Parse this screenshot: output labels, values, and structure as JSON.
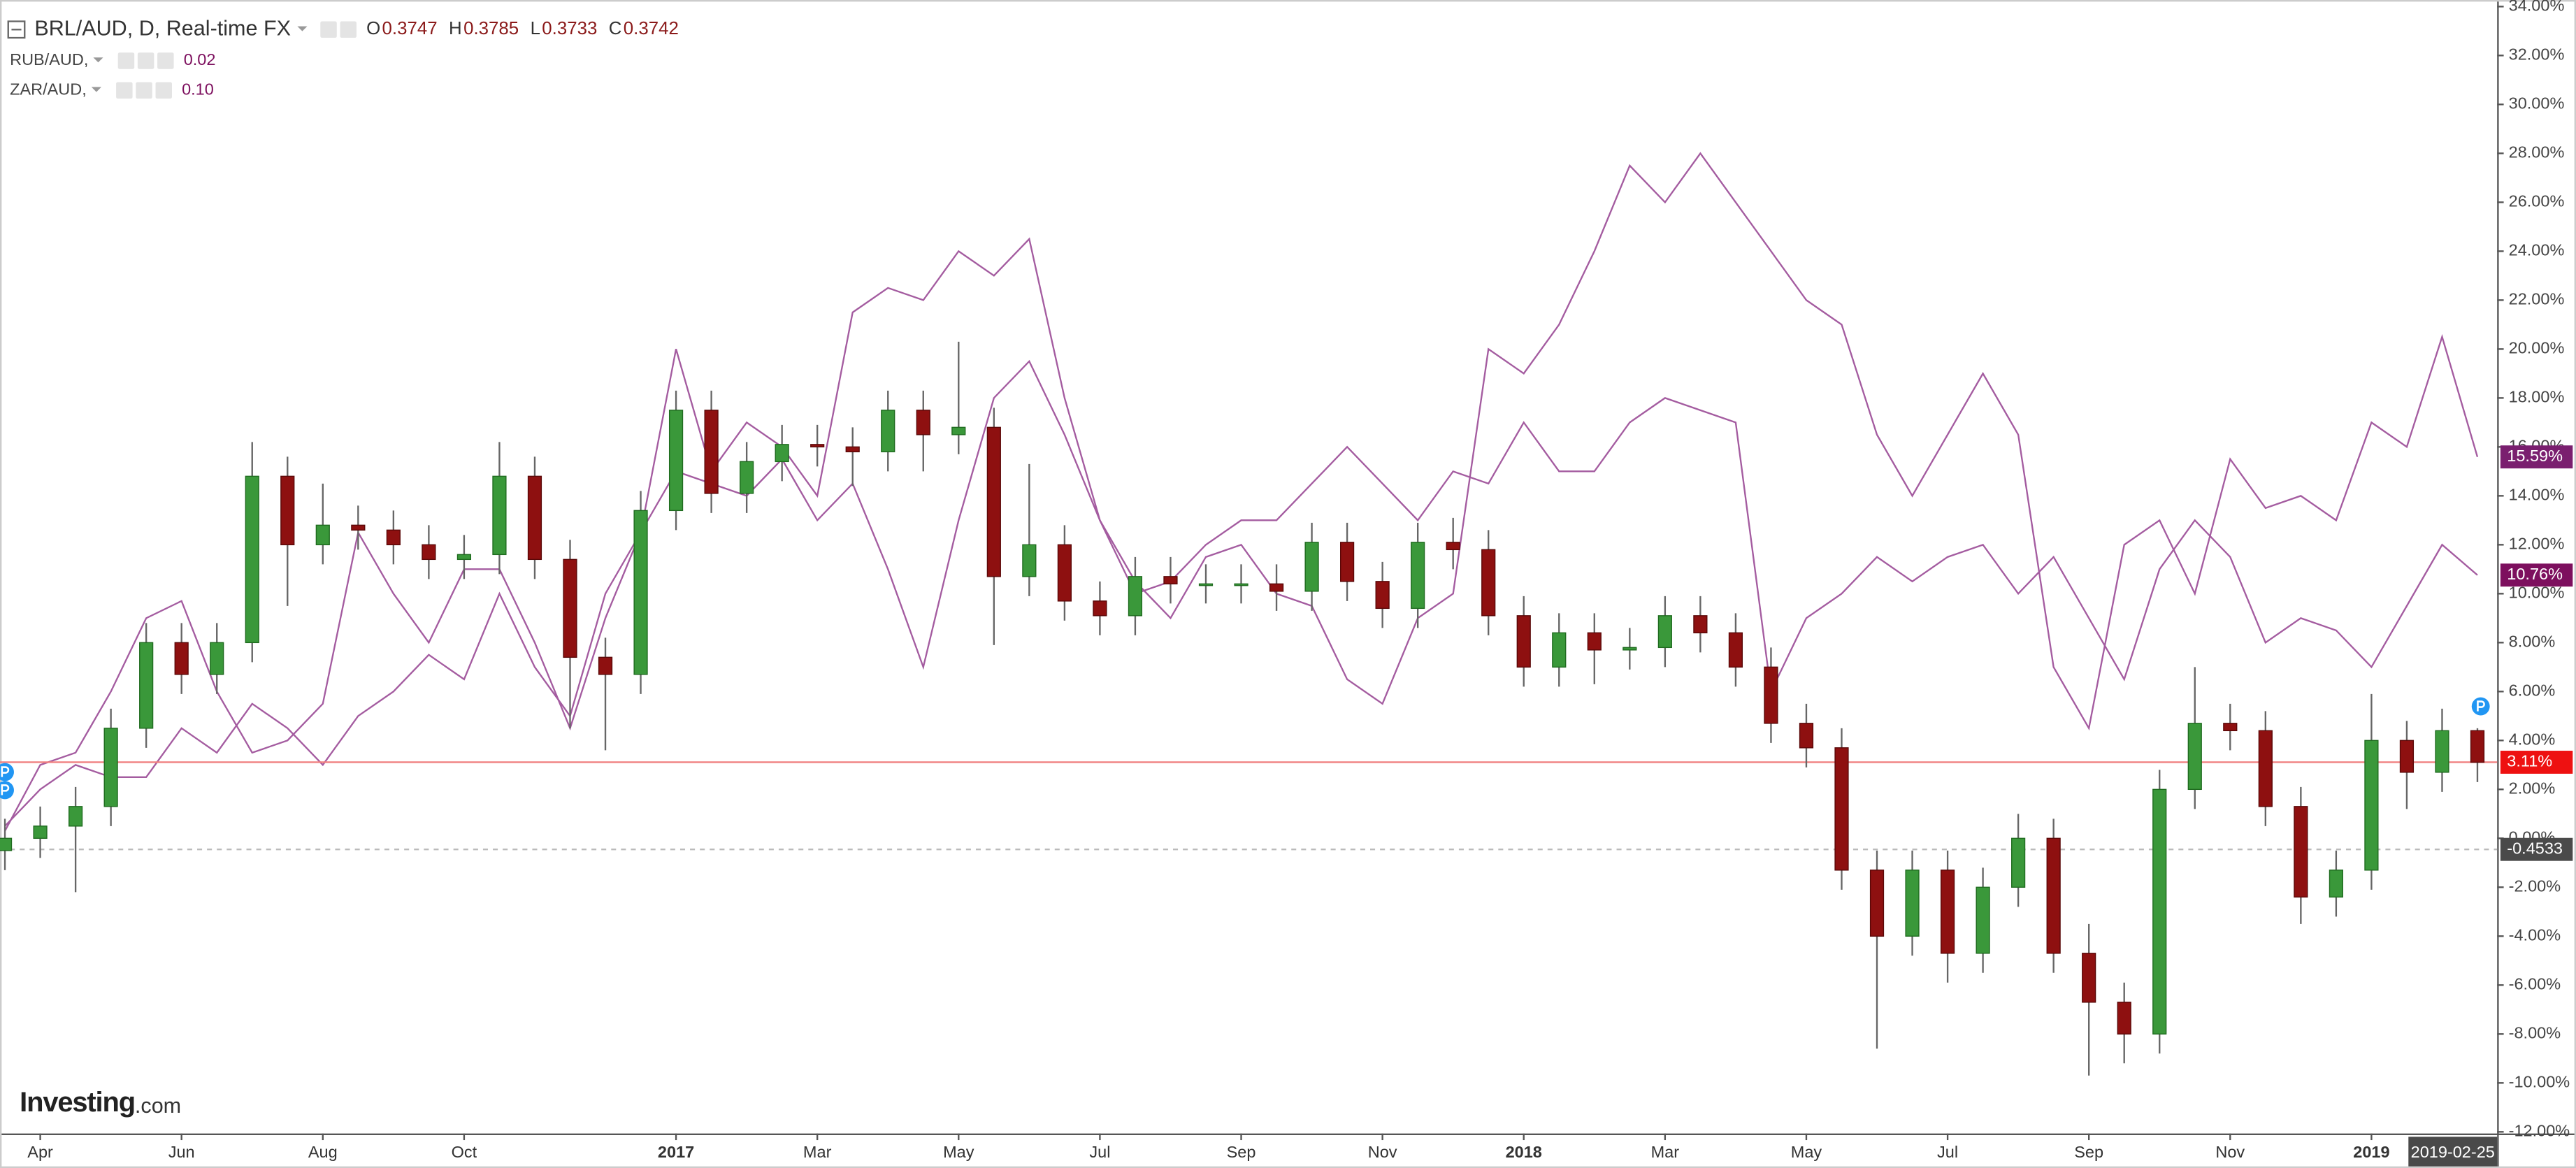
{
  "chart_data": {
    "type": "candlestick",
    "legend": {
      "symbol": "BRL/AUD, D, Real-time FX",
      "ohlc": [
        {
          "label": "O",
          "value": "0.3747"
        },
        {
          "label": "H",
          "value": "0.3785"
        },
        {
          "label": "L",
          "value": "0.3733"
        },
        {
          "label": "C",
          "value": "0.3742"
        }
      ]
    },
    "watermark": [
      "Investing",
      ".com"
    ],
    "categories": [
      null,
      "Apr",
      null,
      null,
      null,
      "Jun",
      null,
      null,
      null,
      "Aug",
      null,
      null,
      null,
      "Oct",
      null,
      null,
      null,
      null,
      null,
      "2017",
      null,
      null,
      null,
      "Mar",
      null,
      null,
      null,
      "May",
      null,
      null,
      null,
      "Jul",
      null,
      null,
      null,
      "Sep",
      null,
      null,
      null,
      "Nov",
      null,
      null,
      null,
      "2018",
      null,
      null,
      null,
      "Mar",
      null,
      null,
      null,
      "May",
      null,
      null,
      null,
      "Jul",
      null,
      null,
      null,
      "Sep",
      null,
      null,
      null,
      "Nov",
      null,
      null,
      null,
      "2019",
      null,
      null,
      "2019-02-25"
    ],
    "open": [
      -0.5,
      0.0,
      0.5,
      1.3,
      4.5,
      8.0,
      6.7,
      8.0,
      14.8,
      12.0,
      12.8,
      12.6,
      12.0,
      11.4,
      11.6,
      14.8,
      11.4,
      7.4,
      6.7,
      13.4,
      17.5,
      14.1,
      15.4,
      16.1,
      16.0,
      15.8,
      17.5,
      16.5,
      16.8,
      10.7,
      12.0,
      9.7,
      9.1,
      10.7,
      10.4,
      10.4,
      10.4,
      10.1,
      12.1,
      10.5,
      9.4,
      12.1,
      11.8,
      9.1,
      7.0,
      8.4,
      7.7,
      7.8,
      9.1,
      8.4,
      7.0,
      4.7,
      3.7,
      -1.3,
      -4.0,
      -1.3,
      -4.7,
      -2.0,
      0.0,
      -4.7,
      -6.7,
      -8.0,
      2.0,
      4.7,
      4.4,
      1.3,
      -2.4,
      -1.3,
      4.0,
      2.7,
      4.4
    ],
    "high": [
      0.8,
      1.3,
      2.1,
      5.3,
      8.8,
      8.8,
      8.8,
      16.2,
      15.6,
      14.5,
      13.6,
      13.4,
      12.8,
      12.4,
      16.2,
      15.6,
      12.2,
      8.2,
      14.2,
      18.3,
      18.3,
      16.2,
      16.9,
      16.9,
      16.8,
      18.3,
      18.3,
      20.3,
      17.6,
      15.3,
      12.8,
      10.5,
      11.5,
      11.5,
      11.2,
      11.2,
      11.2,
      12.9,
      12.9,
      11.3,
      12.9,
      13.1,
      12.6,
      9.9,
      9.2,
      9.2,
      8.6,
      9.9,
      9.9,
      9.2,
      7.8,
      5.5,
      4.5,
      -0.5,
      -0.5,
      -0.5,
      -1.2,
      1.0,
      0.8,
      -3.5,
      -5.9,
      2.8,
      7.0,
      5.5,
      5.2,
      2.1,
      -0.5,
      5.9,
      4.8,
      5.3,
      4.5
    ],
    "low": [
      -1.3,
      -0.8,
      -2.2,
      0.5,
      3.7,
      5.9,
      5.9,
      7.2,
      9.5,
      11.2,
      11.8,
      11.2,
      10.6,
      10.6,
      10.8,
      10.6,
      4.5,
      3.6,
      5.9,
      12.6,
      13.3,
      13.3,
      14.6,
      15.2,
      14.4,
      15.0,
      15.0,
      15.7,
      7.9,
      9.9,
      8.9,
      8.3,
      8.3,
      9.6,
      9.6,
      9.6,
      9.3,
      9.3,
      9.7,
      8.6,
      8.6,
      11.0,
      8.3,
      6.2,
      6.2,
      6.3,
      6.9,
      7.0,
      7.6,
      6.2,
      3.9,
      2.9,
      -2.1,
      -8.6,
      -4.8,
      -5.9,
      -5.5,
      -2.8,
      -5.5,
      -9.7,
      -9.2,
      -8.8,
      1.2,
      3.6,
      0.5,
      -3.5,
      -3.2,
      -2.1,
      1.2,
      1.9,
      2.3
    ],
    "close": [
      0.0,
      0.5,
      1.3,
      4.5,
      8.0,
      6.7,
      8.0,
      14.8,
      12.0,
      12.8,
      12.6,
      12.0,
      11.4,
      11.6,
      14.8,
      11.4,
      7.4,
      6.7,
      13.4,
      17.5,
      14.1,
      15.4,
      16.1,
      16.0,
      15.8,
      17.5,
      16.5,
      16.8,
      10.7,
      12.0,
      9.7,
      9.1,
      10.7,
      10.4,
      10.4,
      10.4,
      10.1,
      12.1,
      10.5,
      9.4,
      12.1,
      11.8,
      9.1,
      7.0,
      8.4,
      7.7,
      7.8,
      9.1,
      8.4,
      7.0,
      4.7,
      3.7,
      -1.3,
      -4.0,
      -1.3,
      -4.7,
      -2.0,
      0.0,
      -4.7,
      -6.7,
      -8.0,
      2.0,
      4.7,
      4.4,
      1.3,
      -2.4,
      -1.3,
      4.0,
      2.7,
      4.4,
      3.11
    ],
    "last_label": "3.11%",
    "up_color": "#3a983a",
    "down_color": "#8e1010",
    "last_line_color": "#f08080",
    "series": [
      {
        "name": "RUB/AUD,",
        "legend_value": "0.02",
        "color": "#a45ca0",
        "last_label": "10.76%",
        "values": [
          0.5,
          2.0,
          3.0,
          2.5,
          2.5,
          4.5,
          3.5,
          5.5,
          4.5,
          3.0,
          5.0,
          6.0,
          7.5,
          6.5,
          10.0,
          7.0,
          5.0,
          10.0,
          12.5,
          15.0,
          14.5,
          14.0,
          15.5,
          13.0,
          14.5,
          11.0,
          7.0,
          13.0,
          18.0,
          19.5,
          16.5,
          13.0,
          10.0,
          10.5,
          12.0,
          13.0,
          13.0,
          14.5,
          16.0,
          14.5,
          13.0,
          15.0,
          14.5,
          17.0,
          15.0,
          15.0,
          17.0,
          18.0,
          17.5,
          17.0,
          6.0,
          9.0,
          10.0,
          11.5,
          10.5,
          11.5,
          12.0,
          10.0,
          11.5,
          9.0,
          6.5,
          11.0,
          13.0,
          11.5,
          8.0,
          9.0,
          8.5,
          7.0,
          9.5,
          12.0,
          10.76
        ]
      },
      {
        "name": "ZAR/AUD,",
        "legend_value": "0.10",
        "color": "#a45ca0",
        "last_label": "15.59%",
        "values": [
          0.3,
          3.0,
          3.5,
          6.0,
          9.0,
          9.7,
          6.0,
          3.5,
          4.0,
          5.5,
          12.5,
          10.0,
          8.0,
          11.0,
          11.0,
          8.0,
          4.5,
          9.0,
          12.5,
          20.0,
          15.0,
          17.0,
          16.0,
          14.0,
          21.5,
          22.5,
          22.0,
          24.0,
          23.0,
          24.5,
          18.0,
          13.0,
          10.5,
          9.0,
          11.5,
          12.0,
          10.0,
          9.5,
          6.5,
          5.5,
          9.0,
          10.0,
          20.0,
          19.0,
          21.0,
          24.0,
          27.5,
          26.0,
          28.0,
          26.0,
          24.0,
          22.0,
          21.0,
          16.5,
          14.0,
          16.5,
          19.0,
          16.5,
          7.0,
          4.5,
          12.0,
          13.0,
          10.0,
          15.5,
          13.5,
          14.0,
          13.0,
          17.0,
          16.0,
          20.5,
          15.59
        ]
      }
    ],
    "reference_line": -0.4533,
    "ylim": [
      -12,
      34
    ],
    "yticks": [
      {
        "value": 34,
        "label": "34.00%"
      },
      {
        "value": 32,
        "label": "32.00%"
      },
      {
        "value": 30,
        "label": "30.00%"
      },
      {
        "value": 28,
        "label": "28.00%"
      },
      {
        "value": 26,
        "label": "26.00%"
      },
      {
        "value": 24,
        "label": "24.00%"
      },
      {
        "value": 22,
        "label": "22.00%"
      },
      {
        "value": 20,
        "label": "20.00%"
      },
      {
        "value": 18,
        "label": "18.00%"
      },
      {
        "value": 16,
        "label": "16.00%"
      },
      {
        "value": 14,
        "label": "14.00%"
      },
      {
        "value": 12,
        "label": "12.00%"
      },
      {
        "value": 10,
        "label": "10.00%"
      },
      {
        "value": 8,
        "label": "8.00%"
      },
      {
        "value": 6,
        "label": "6.00%"
      },
      {
        "value": 4,
        "label": "4.00%"
      },
      {
        "value": 2,
        "label": "2.00%"
      },
      {
        "value": 0,
        "label": "0.00%"
      },
      {
        "value": -2,
        "label": "-2.00%"
      },
      {
        "value": -4,
        "label": "-4.00%"
      },
      {
        "value": -6,
        "label": "-6.00%"
      },
      {
        "value": -8,
        "label": "-8.00%"
      },
      {
        "value": -10,
        "label": "-10.00%"
      },
      {
        "value": -12,
        "label": "-12.00%"
      }
    ],
    "grid": false
  }
}
